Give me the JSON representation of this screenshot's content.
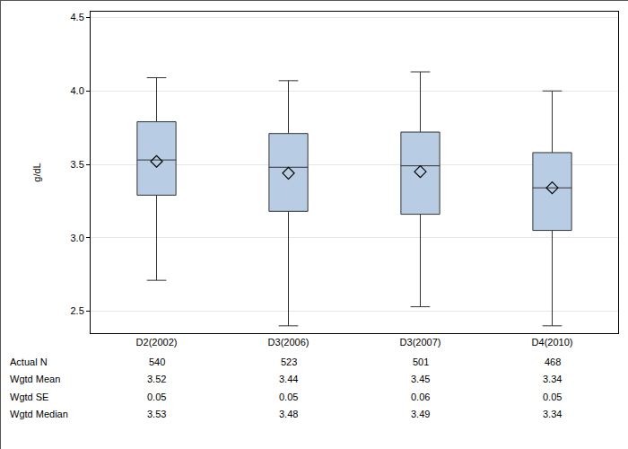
{
  "chart_data": {
    "type": "box",
    "y_label": "g/dL",
    "categories": [
      "D2(2002)",
      "D3(2006)",
      "D3(2007)",
      "D4(2010)"
    ],
    "whisker_low": [
      2.71,
      2.4,
      2.53,
      2.4
    ],
    "q1": [
      3.29,
      3.18,
      3.16,
      3.05
    ],
    "median": [
      3.53,
      3.48,
      3.49,
      3.34
    ],
    "q3": [
      3.79,
      3.71,
      3.72,
      3.58
    ],
    "whisker_high": [
      4.09,
      4.07,
      4.13,
      4.0
    ],
    "mean": [
      3.52,
      3.44,
      3.45,
      3.34
    ],
    "actual_n": [
      540,
      523,
      501,
      468
    ],
    "se": [
      0.05,
      0.05,
      0.06,
      0.05
    ],
    "table_labels": [
      "Actual N",
      "Wgtd Mean",
      "Wgtd SE",
      "Wgtd Median"
    ],
    "ylim": [
      2.35,
      4.54
    ],
    "yticks": [
      2.5,
      {
        "value": 3,
        "label": "3.0"
      },
      3.5,
      {
        "value": 4,
        "label": "4.0"
      },
      4.5
    ],
    "grid": true,
    "color": "#b8cce4",
    "marker": "diamond"
  }
}
